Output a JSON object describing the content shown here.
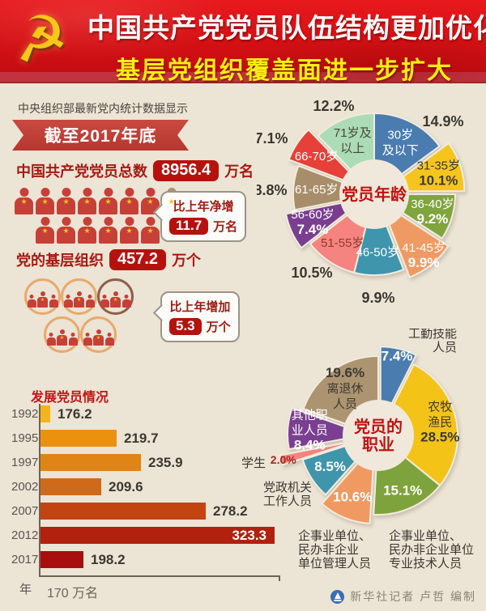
{
  "banner": {
    "title_line1": "中国共产党党员队伍结构更加优化",
    "title_line2": "基层党组织覆盖面进一步扩大",
    "emblem_icon": "hammer-and-sickle",
    "bg_color": "#d31014",
    "line1_color": "#ffffff",
    "line2_color": "#f7ee12"
  },
  "intro": {
    "text": "中央组织部最新党内统计数据显示"
  },
  "ribbon": {
    "text": "截至2017年底",
    "color": "#b5372e"
  },
  "total_members": {
    "label": "中国共产党党员总数",
    "value": "8956.4",
    "unit": "万名",
    "note_label": "比上年净增",
    "note_value": "11.7",
    "note_unit": "万名",
    "icon_rows": [
      {
        "red": 7,
        "tan": 1
      },
      {
        "red": 6,
        "tan": 0
      }
    ]
  },
  "grassroots": {
    "label": "党的基层组织",
    "value": "457.2",
    "unit": "万个",
    "note_label": "比上年增加",
    "note_value": "5.3",
    "note_unit": "万个",
    "circle_rows": [
      [
        "orange",
        "orange",
        "brown"
      ],
      [
        "orange",
        "orange"
      ]
    ]
  },
  "chart_data": [
    {
      "type": "bar",
      "title": "发展党员情况",
      "categories": [
        "1992",
        "1995",
        "1997",
        "2002",
        "2007",
        "2012",
        "2017"
      ],
      "values": [
        176.2,
        219.7,
        235.9,
        209.6,
        278.2,
        323.3,
        198.2
      ],
      "unit": "万名",
      "axis_label": "年",
      "baseline_label": "170 万名",
      "xmin": 170,
      "xmax": 330,
      "bar_colors": [
        "#f5b41b",
        "#eb9110",
        "#e08416",
        "#d06a1b",
        "#c34410",
        "#b2200e",
        "#a90e0f"
      ],
      "value_inside": [
        false,
        false,
        false,
        false,
        false,
        true,
        false
      ]
    },
    {
      "type": "pie",
      "donut": true,
      "center_label": "党员年龄",
      "legend_position": "none",
      "slices": [
        {
          "label": "30岁\n及以下",
          "value": 14.9,
          "color": "#4a7cb0",
          "text_color": "#ffffff",
          "label_inside": true,
          "pct_inside": false,
          "pct_offset": [
            85,
            -90
          ]
        },
        {
          "label": "31-35岁",
          "value": 10.1,
          "color": "#f6c51d",
          "text_color": "#3c3a33",
          "label_inside": true,
          "pct_inside": true,
          "explode": 12
        },
        {
          "label": "36-40岁",
          "value": 9.2,
          "color": "#80a43e",
          "text_color": "#ffffff",
          "label_inside": true,
          "pct_inside": true,
          "ri": 75
        },
        {
          "label": "41-45岁",
          "value": 9.9,
          "color": "#f09a63",
          "text_color": "#ffffff",
          "label_inside": true,
          "pct_inside": true,
          "explode": 12,
          "ri": 85
        },
        {
          "label": "46-50岁",
          "value": 9.9,
          "color": "#3e95ac",
          "text_color": "#ffffff",
          "label_inside": true,
          "pct_inside": false,
          "pct_offset": [
            5,
            128
          ]
        },
        {
          "label": "51-55岁",
          "value": 10.5,
          "color": "#f5837f",
          "text_color": "#8e3a2c",
          "label_inside": true,
          "pct_inside": false,
          "pct_offset": [
            -77,
            97
          ]
        },
        {
          "label": "56-60岁",
          "value": 7.4,
          "color": "#7a3e90",
          "text_color": "#ffffff",
          "label_inside": true,
          "pct_inside": true,
          "explode": 12
        },
        {
          "label": "61-65岁",
          "value": 8.8,
          "color": "#a78d69",
          "text_color": "#ffffff",
          "label_inside": true,
          "pct_inside": false,
          "pct_offset": [
            -128,
            -5
          ]
        },
        {
          "label": "66-70岁",
          "value": 7.1,
          "color": "#e64038",
          "text_color": "#ffffff",
          "label_inside": true,
          "pct_inside": false,
          "explode": 14,
          "pct_offset": [
            -127,
            -69
          ]
        },
        {
          "label": "71岁及\n以上",
          "value": 12.2,
          "color": "#abdcb5",
          "text_color": "#4a463c",
          "label_inside": true,
          "pct_inside": false,
          "pct_offset": [
            -50,
            -109
          ]
        }
      ]
    },
    {
      "type": "pie",
      "donut": true,
      "center_label": "党员的\n职业",
      "legend_position": "none",
      "slices": [
        {
          "label": "工勤技能\n人员",
          "value": 7.4,
          "color": "#4a7cb0",
          "text_color": "#ffffff",
          "label_inside": false,
          "pct_inside": true,
          "explode": 12,
          "ri": 88,
          "label_offset": [
            97,
            -126
          ],
          "label_anchor": "end"
        },
        {
          "label": "农牧\n渔民",
          "value": 28.5,
          "color": "#f3c318",
          "text_color": "#3c3a33",
          "label_inside": true,
          "pct_inside": true,
          "ri": 78
        },
        {
          "label": "企事业单位、\n民办非企业单位\n专业技术人员",
          "value": 15.1,
          "color": "#7fa33c",
          "text_color": "#ffffff",
          "label_inside": false,
          "pct_inside": true,
          "ri": 75,
          "label_offset": [
            13,
            124
          ],
          "label_anchor": "start"
        },
        {
          "label": "企事业单位、\n民办非企业\n单位管理人员",
          "value": 10.6,
          "color": "#f09a62",
          "text_color": "#ffffff",
          "label_inside": false,
          "pct_inside": true,
          "explode": 12,
          "label_offset": [
            -99,
            124
          ],
          "label_anchor": "start"
        },
        {
          "label": "党政机关\n工作人员",
          "value": 8.5,
          "color": "#3e95ac",
          "text_color": "#ffffff",
          "label_inside": false,
          "pct_inside": true,
          "label_offset": [
            -112,
            64
          ],
          "label_anchor": "middle"
        },
        {
          "label": "学生",
          "value": 2.0,
          "color": "#f5827e",
          "text_color": "#9c2d20",
          "label_inside": false,
          "pct_inside": true,
          "explode": 26,
          "ri": 95,
          "pct_size": 14,
          "label_offset": [
            -154,
            34
          ],
          "label_anchor": "middle"
        },
        {
          "label": "其他职\n业人员",
          "value": 8.4,
          "color": "#7b3f91",
          "text_color": "#ffffff",
          "label_inside": true,
          "pct_inside": true,
          "explode": 14
        },
        {
          "label": "离退休\n人员",
          "value": 19.6,
          "color": "#ad9471",
          "text_color": "#3c3a33",
          "label_inside": true,
          "pct_inside": true,
          "pct_first": true
        }
      ]
    }
  ],
  "footer": {
    "credit": "新华社记者 卢哲 编制",
    "logo": "xinhua-news-agency"
  },
  "colors": {
    "background": "#ece4d5",
    "accent_red": "#b5120e",
    "heading_red": "#a81a12",
    "chart_title_red": "#c41414",
    "donut_center_red": "#c01212"
  }
}
